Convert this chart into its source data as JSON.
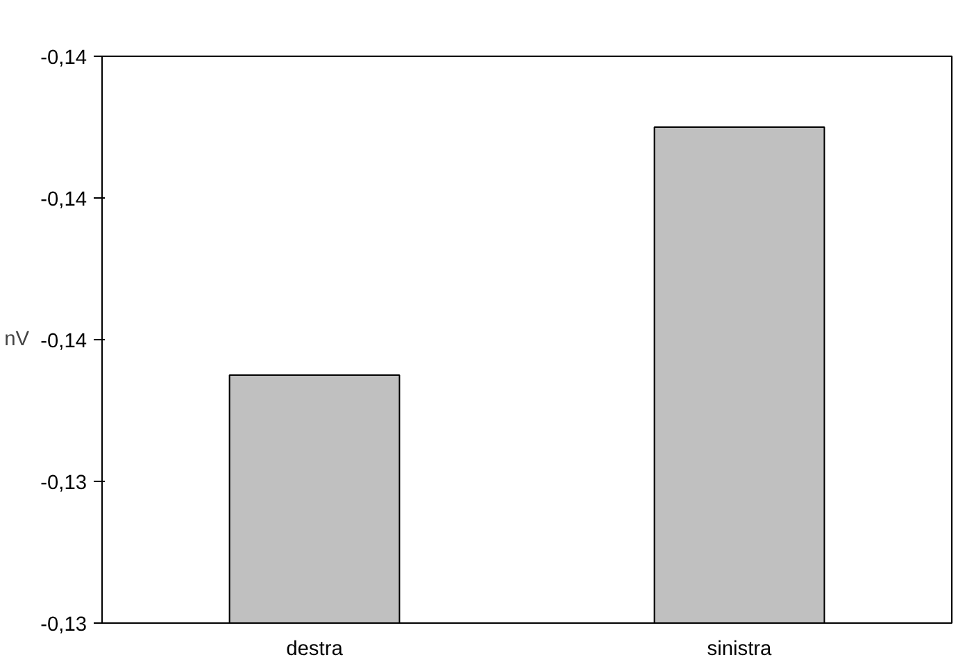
{
  "chart_data": {
    "type": "bar",
    "ylabel": "nV",
    "categories": [
      "destra",
      "sinistra"
    ],
    "values": [
      -0.1354,
      -0.1368
    ],
    "color": "#c0c0c0",
    "ylim": [
      -0.134,
      -0.1372
    ],
    "yticks": [
      {
        "value": -0.134,
        "label": "-0,13"
      },
      {
        "value": -0.1348,
        "label": "-0,13"
      },
      {
        "value": -0.1356,
        "label": "-0,14"
      },
      {
        "value": -0.1364,
        "label": "-0,14"
      },
      {
        "value": -0.1372,
        "label": "-0,14"
      }
    ],
    "grid": false
  }
}
